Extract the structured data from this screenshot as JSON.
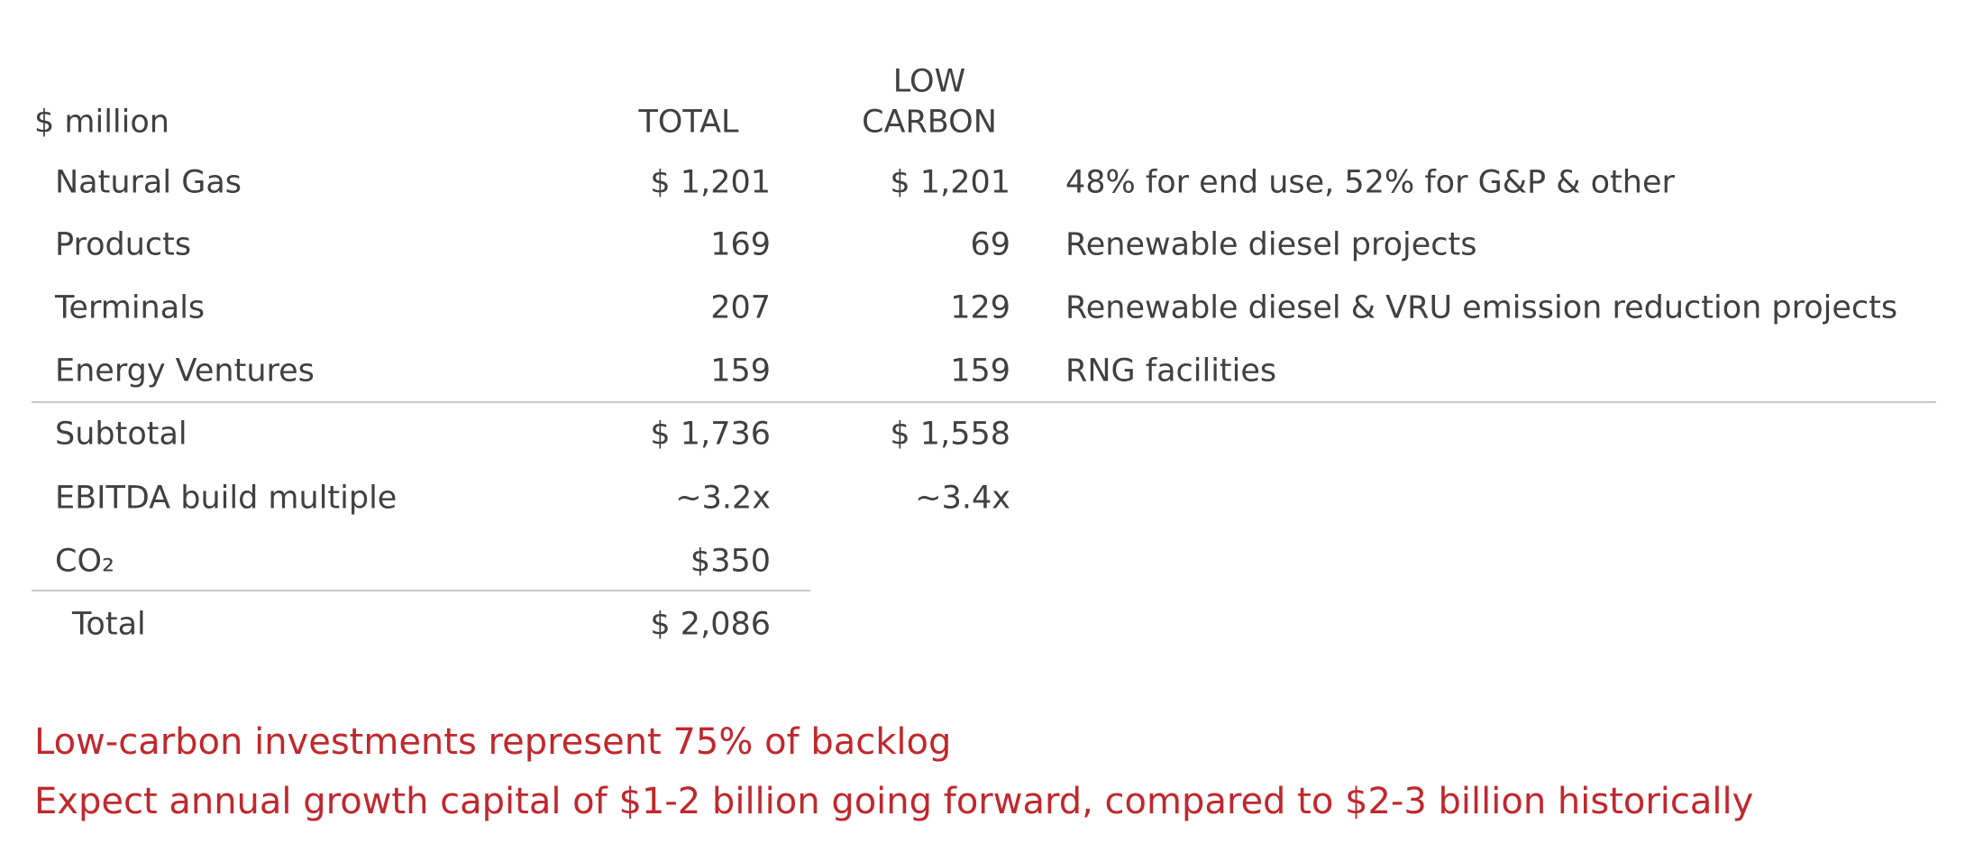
{
  "header": {
    "unit": "$ million",
    "total": "TOTAL",
    "low_carbon": [
      "LOW",
      "CARBON"
    ]
  },
  "table": {
    "rows": [
      {
        "label": "Natural Gas",
        "total": "$ 1,201",
        "low_carbon": "$ 1,201",
        "note": "48% for end use, 52% for G&P & other"
      },
      {
        "label": "Products",
        "total": "169",
        "low_carbon": "69",
        "note": "Renewable diesel projects"
      },
      {
        "label": "Terminals",
        "total": "207",
        "low_carbon": "129",
        "note": "Renewable diesel & VRU emission reduction projects"
      },
      {
        "label": "Energy Ventures",
        "total": "159",
        "low_carbon": "159",
        "note": "RNG facilities"
      },
      {
        "label": "Subtotal",
        "total": "$ 1,736",
        "low_carbon": "$ 1,558"
      },
      {
        "label": "EBITDA build multiple",
        "total": "~3.2x",
        "low_carbon": "~3.4x"
      },
      {
        "label": "CO₂",
        "total": "$350"
      },
      {
        "label": "Total",
        "total": "$ 2,086"
      }
    ]
  },
  "notes": [
    "Low-carbon investments represent 75% of backlog",
    "Expect annual growth capital of $1-2 billion going forward, compared to $2-3 billion historically"
  ]
}
